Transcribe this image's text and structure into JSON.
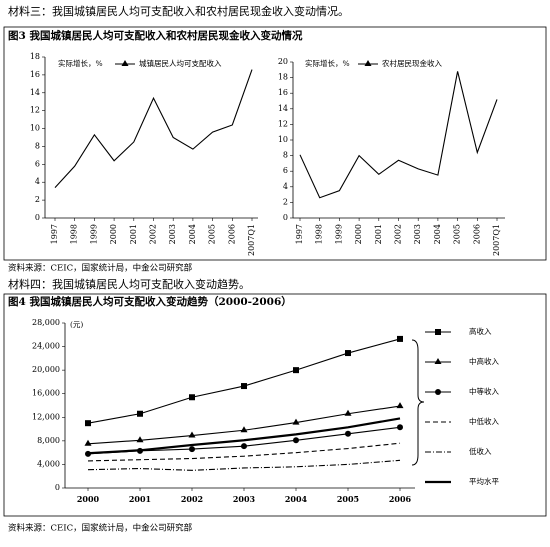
{
  "header": "材料三：我国城镇居民人均可支配收入和农村居民现金收入变动情况。",
  "figure3_title": "图3 我国城镇居民人均可支配收入和农村居民现金收入变动情况",
  "source1": "资料来源：CEIC，国家统计局，中金公司研究部",
  "header2": "材料四：我国城镇居民人均可支配收入变动趋势。",
  "figure4_title": "图4 我国城镇居民人均可支配收入变动趋势（2000-2006）",
  "source2": "资料来源：CEIC，国家统计局，中金公司研究部",
  "chart_data": [
    {
      "type": "line",
      "y_label": "实际增长，%",
      "categories": [
        "1997",
        "1998",
        "1999",
        "2000",
        "2001",
        "2002",
        "2003",
        "2004",
        "2005",
        "2006",
        "2007Q1"
      ],
      "series": [
        {
          "name": "城镇居民人均可支配收入",
          "color": "#000000",
          "marker": "triangle",
          "dash": "solid",
          "values": [
            3.4,
            5.8,
            9.3,
            6.4,
            8.5,
            13.4,
            9.0,
            7.7,
            9.6,
            10.4,
            16.6
          ]
        }
      ],
      "ylim": [
        0,
        18
      ],
      "yticks": [
        0,
        2,
        4,
        6,
        8,
        10,
        12,
        14,
        16,
        18
      ],
      "grid": false
    },
    {
      "type": "line",
      "y_label": "实际增长，%",
      "categories": [
        "1997",
        "1998",
        "1999",
        "2000",
        "2001",
        "2002",
        "2003",
        "2004",
        "2005",
        "2006",
        "2007Q1"
      ],
      "series": [
        {
          "name": "农村居民现金收入",
          "color": "#000000",
          "marker": "triangle",
          "dash": "solid",
          "values": [
            8.1,
            2.6,
            3.5,
            8.0,
            5.6,
            7.4,
            6.3,
            5.5,
            18.8,
            8.4,
            15.2
          ]
        }
      ],
      "ylim": [
        0,
        20
      ],
      "yticks": [
        0,
        2,
        4,
        6,
        8,
        10,
        12,
        14,
        16,
        18,
        20
      ],
      "grid": false
    },
    {
      "type": "line",
      "y_label": "(元)",
      "categories": [
        "2000",
        "2001",
        "2002",
        "2003",
        "2004",
        "2005",
        "2006"
      ],
      "series": [
        {
          "name": "高收入",
          "color": "#000000",
          "marker": "square",
          "dash": "solid",
          "values": [
            11000,
            12600,
            15400,
            17300,
            20000,
            22900,
            25300
          ]
        },
        {
          "name": "中高收入",
          "color": "#000000",
          "marker": "triangle",
          "dash": "solid",
          "values": [
            7500,
            8100,
            8900,
            9800,
            11100,
            12600,
            13900
          ]
        },
        {
          "name": "中等收入",
          "color": "#000000",
          "marker": "circle",
          "dash": "solid",
          "values": [
            5800,
            6300,
            6600,
            7100,
            8100,
            9200,
            10300
          ]
        },
        {
          "name": "中低收入",
          "color": "#000000",
          "marker": "none",
          "dash": "dashed",
          "values": [
            4600,
            4800,
            5000,
            5400,
            6000,
            6700,
            7600
          ]
        },
        {
          "name": "低收入",
          "color": "#000000",
          "marker": "none",
          "dash": "dashdot",
          "values": [
            3100,
            3300,
            3000,
            3400,
            3600,
            4000,
            4700
          ]
        },
        {
          "name": "平均水平",
          "color": "#000000",
          "marker": "none",
          "dash": "thick",
          "values": [
            5900,
            6400,
            7300,
            8100,
            9100,
            10300,
            11800
          ]
        }
      ],
      "ylim": [
        0,
        28000
      ],
      "yticks": [
        0,
        {
          "value": 4000,
          "label": "4,000"
        },
        {
          "value": 8000,
          "label": "8,000"
        },
        {
          "value": 12000,
          "label": "12,000"
        },
        {
          "value": 16000,
          "label": "16,000"
        },
        {
          "value": 20000,
          "label": "20,000"
        },
        {
          "value": 24000,
          "label": "24,000"
        },
        {
          "value": 28000,
          "label": "28,000"
        }
      ],
      "grid": false
    }
  ]
}
